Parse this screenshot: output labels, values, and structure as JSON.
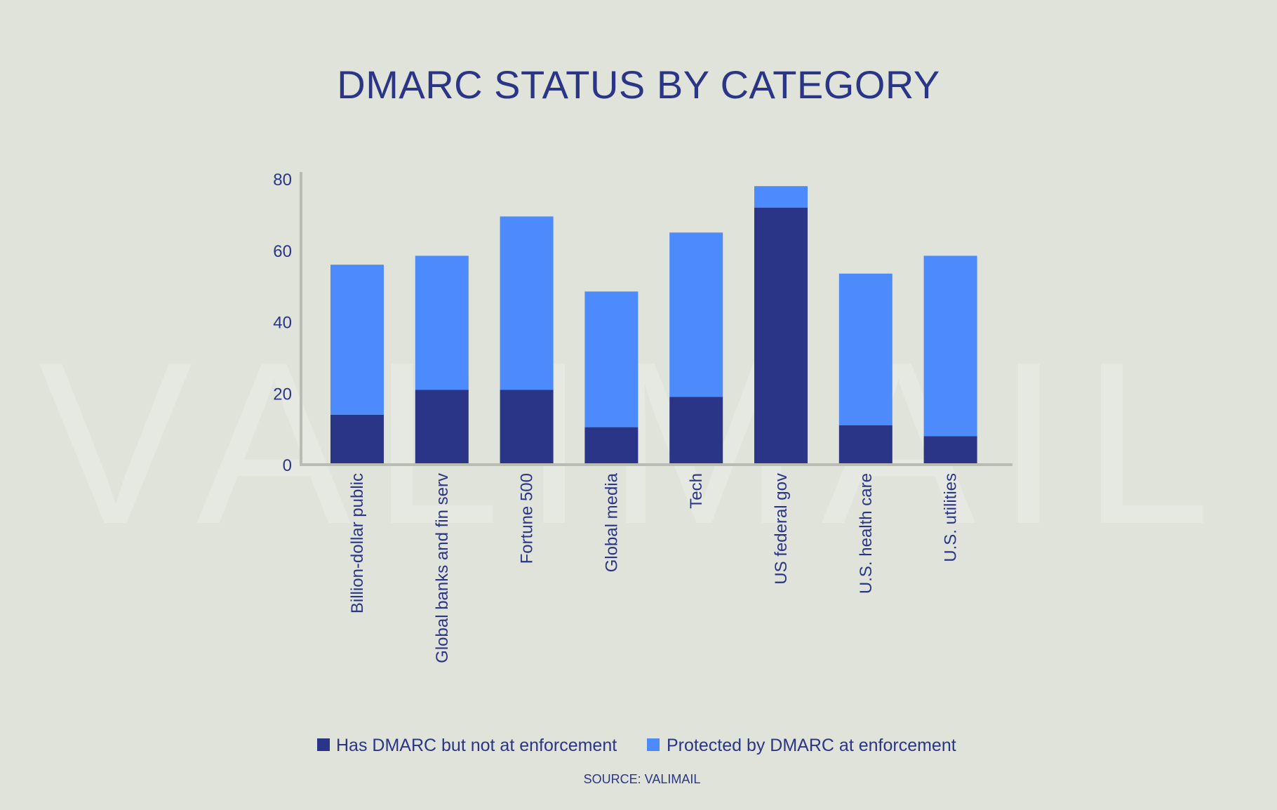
{
  "colors": {
    "background": "#dfe3da",
    "text": "#2a3587",
    "series_dark": "#2a3587",
    "series_light": "#4d8afc",
    "axis": "#b9bcb3"
  },
  "watermark": "VALIMAIL",
  "source": "SOURCE: VALIMAIL",
  "chart_data": {
    "type": "bar",
    "stacked": true,
    "title": "DMARC STATUS BY CATEGORY",
    "xlabel": "",
    "ylabel": "",
    "ylim": [
      0,
      80
    ],
    "yticks": [
      0,
      20,
      40,
      60,
      80
    ],
    "grid": false,
    "legend_position": "bottom",
    "categories": [
      "Billion-dollar public",
      "Global banks and fin serv",
      "Fortune 500",
      "Global media",
      "Tech",
      "US federal gov",
      "U.S. health care",
      "U.S. utilities"
    ],
    "series": [
      {
        "name": "Has DMARC but not at enforcement",
        "color": "#2a3587",
        "values": [
          14,
          21,
          21,
          10.5,
          19,
          72,
          11,
          8
        ]
      },
      {
        "name": "Protected by DMARC at enforcement",
        "color": "#4d8afc",
        "values": [
          42,
          37.5,
          48.5,
          38,
          46,
          6,
          42.5,
          50.5
        ]
      }
    ]
  }
}
